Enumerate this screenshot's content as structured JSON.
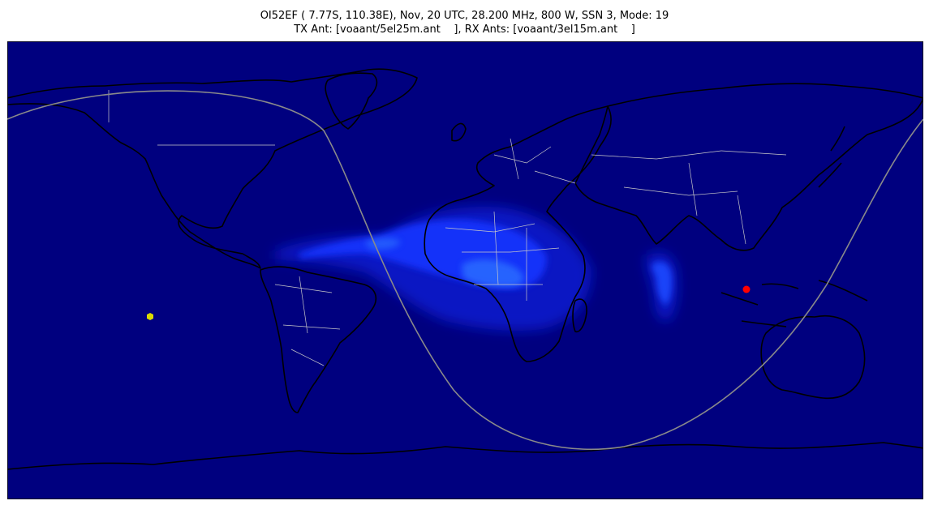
{
  "title": {
    "line1": "OI52EF ( 7.77S, 110.38E), Nov, 20 UTC, 28.200 MHz, 800 W, SSN 3, Mode: 19",
    "line2": "TX Ant: [voaant/5el25m.ant    ], RX Ants: [voaant/3el15m.ant    ]"
  },
  "map": {
    "projection": "cylindrical (plate carrée)",
    "background_color": "#00007f",
    "coastline_color": "#000000",
    "border_color": "#c8c8c8",
    "terminator_color": "#8a8a8a",
    "coverage_colors": [
      "#0a1fd0",
      "#1436ff",
      "#2a6cff"
    ],
    "markers": [
      {
        "label": "transmitter",
        "lat": -7.77,
        "lon": 110.38,
        "color": "#ff0000",
        "symbol": "circle"
      },
      {
        "label": "receiver",
        "lat": -16.6,
        "lon": -149.6,
        "color": "#d9d900",
        "symbol": "hexagon"
      }
    ]
  }
}
